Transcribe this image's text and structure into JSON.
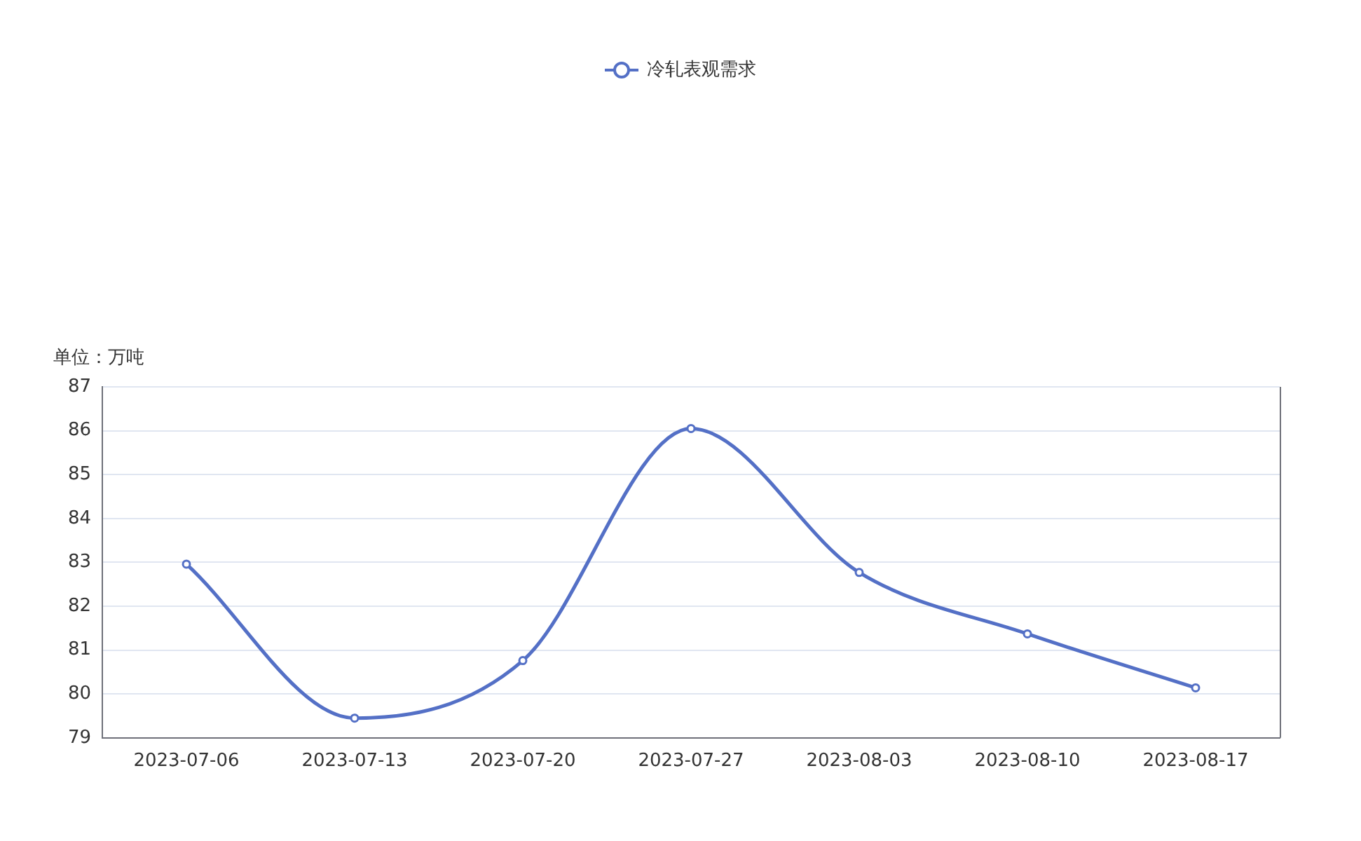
{
  "chart_data": {
    "type": "line",
    "ylabel": "单位：万吨",
    "categories": [
      "2023-07-06",
      "2023-07-13",
      "2023-07-20",
      "2023-07-27",
      "2023-08-03",
      "2023-08-10",
      "2023-08-17"
    ],
    "series": [
      {
        "name": "冷轧表观需求",
        "color": "#5470c6",
        "values": [
          82.96,
          79.45,
          80.76,
          86.05,
          82.77,
          81.37,
          80.14
        ]
      }
    ],
    "ylim": [
      79,
      87
    ],
    "yticks": [
      79,
      80,
      81,
      82,
      83,
      84,
      85,
      86,
      87
    ],
    "grid": "y",
    "legend": "top",
    "marker": "circle",
    "line_style": "solid"
  }
}
